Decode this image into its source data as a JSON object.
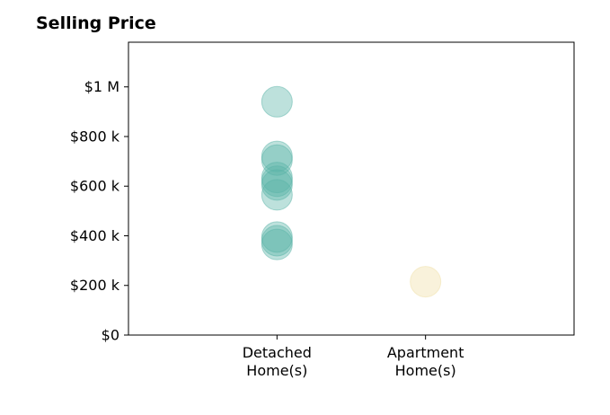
{
  "chart_data": {
    "type": "scatter",
    "title": "Selling Price",
    "xlabel": "",
    "ylabel": "",
    "categories": [
      [
        "Detached",
        "Home(s)"
      ],
      [
        "Apartment",
        "Home(s)"
      ]
    ],
    "x_range": [
      -1,
      2
    ],
    "ylim": [
      0,
      1180000
    ],
    "y_ticks": [
      0,
      200000,
      400000,
      600000,
      800000,
      1000000
    ],
    "y_tick_labels": [
      "$0",
      "$200 k",
      "$400 k",
      "$600 k",
      "$800 k",
      "$1 M"
    ],
    "grid": false,
    "series": [
      {
        "category_index": 0,
        "color": "#5ab4a8",
        "values": [
          940000,
          720000,
          705000,
          635000,
          620000,
          605000,
          565000,
          395000,
          380000,
          365000
        ]
      },
      {
        "category_index": 1,
        "color": "#f0dfa6",
        "values": [
          215000
        ]
      }
    ]
  }
}
